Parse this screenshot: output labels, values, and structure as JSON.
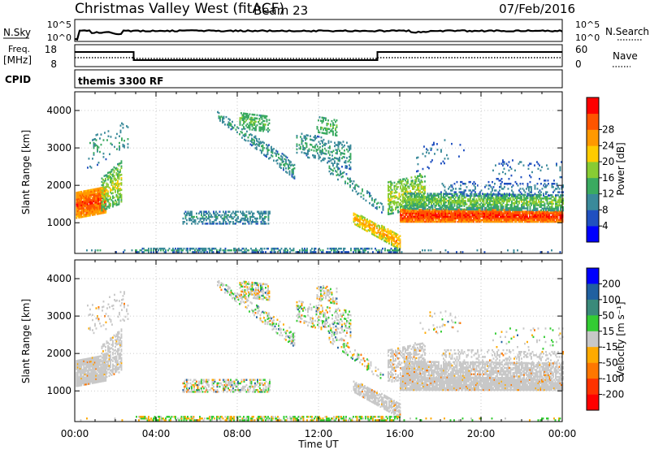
{
  "header": {
    "title": "Christmas Valley West (fitACF)",
    "beam": "Beam 23",
    "date": "07/Feb/2016"
  },
  "summary": {
    "nsky_label": "N.Sky",
    "nsky_ticks": [
      "10^5",
      "10^0"
    ],
    "nsearch_label": "N.Search",
    "nsearch_ticks": [
      "10^5",
      "10^0"
    ],
    "freq_label": "Freq.",
    "freq_unit": "[MHz]",
    "freq_ticks": [
      "18",
      "8"
    ],
    "nave_label": "Nave",
    "nave_ticks": [
      "60",
      "0"
    ],
    "cpid_label": "CPID",
    "cpid_value": "themis 3300 RF"
  },
  "chart_data": [
    {
      "type": "heatmap",
      "name": "power",
      "ylabel": "Slant Range [km]",
      "xlabel": "",
      "ylim": [
        180,
        4500
      ],
      "yticks": [
        "1000",
        "2000",
        "3000",
        "4000"
      ],
      "xlim_hours": [
        0,
        24
      ],
      "colorbar": {
        "label": "Power [dB]",
        "ticks": [
          "4",
          "8",
          "12",
          "16",
          "20",
          "24",
          "28"
        ],
        "colors": [
          "#0000ff",
          "#2050c0",
          "#3a8a9a",
          "#3aaa60",
          "#88cc33",
          "#ffcc00",
          "#ff9900",
          "#ff5500",
          "#ff0000"
        ]
      }
    },
    {
      "type": "heatmap",
      "name": "velocity",
      "ylabel": "Slant Range [km]",
      "xlabel": "Time UT",
      "ylim": [
        180,
        4500
      ],
      "yticks": [
        "1000",
        "2000",
        "3000",
        "4000"
      ],
      "xticks": [
        "00:00",
        "04:00",
        "08:00",
        "12:00",
        "16:00",
        "20:00",
        "00:00"
      ],
      "xlim_hours": [
        0,
        24
      ],
      "colorbar": {
        "label": "Velocity [m s⁻¹]",
        "ticks": [
          "200",
          "100",
          "50",
          "15",
          "-15",
          "-50",
          "-100",
          "-200"
        ],
        "colors": [
          "#0000ff",
          "#2060a0",
          "#3a8a7a",
          "#33cc33",
          "#c8c8c8",
          "#ffaa00",
          "#ff7700",
          "#ff3300",
          "#ff0000"
        ]
      }
    }
  ],
  "colors": {
    "ground_scatter": "#c8c8c8",
    "axis": "#000000",
    "grid": "#bbbbbb"
  }
}
